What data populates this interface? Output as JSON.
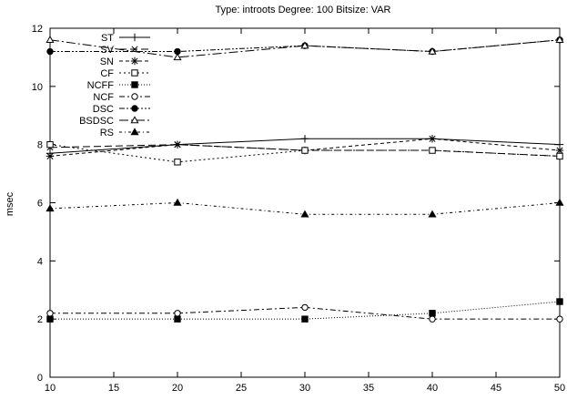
{
  "chart_data": {
    "type": "line",
    "title": "Type: introots Degree: 100 Bitsize: VAR",
    "xlabel": "",
    "ylabel": "msec",
    "xlim": [
      10,
      50
    ],
    "ylim": [
      0,
      12
    ],
    "xticks": [
      10,
      15,
      20,
      25,
      30,
      35,
      40,
      45,
      50
    ],
    "yticks": [
      0,
      2,
      4,
      6,
      8,
      10,
      12
    ],
    "grid": false,
    "legend": "top-left",
    "x": [
      10,
      20,
      30,
      40,
      50
    ],
    "series": [
      {
        "name": "ST",
        "dash": "solid",
        "marker": "plus",
        "values": [
          7.7,
          8.0,
          8.2,
          8.2,
          8.0
        ]
      },
      {
        "name": "SV",
        "dash": "long-dash",
        "marker": "cross",
        "values": [
          7.9,
          8.0,
          7.8,
          7.8,
          7.6
        ]
      },
      {
        "name": "SN",
        "dash": "short-dash",
        "marker": "star",
        "values": [
          7.6,
          8.0,
          7.8,
          8.2,
          7.8
        ]
      },
      {
        "name": "CF",
        "dash": "dotted",
        "marker": "square-open",
        "values": [
          8.0,
          7.4,
          7.8,
          7.8,
          7.6
        ]
      },
      {
        "name": "NCFF",
        "dash": "fine-dotted",
        "marker": "square-filled",
        "values": [
          2.0,
          2.0,
          2.0,
          2.2,
          2.6
        ]
      },
      {
        "name": "NCF",
        "dash": "dash-dot",
        "marker": "circle-open",
        "values": [
          2.2,
          2.2,
          2.4,
          2.0,
          2.0
        ]
      },
      {
        "name": "DSC",
        "dash": "dash-dot-dot",
        "marker": "circle-filled",
        "values": [
          11.2,
          11.2,
          11.4,
          11.2,
          11.6
        ]
      },
      {
        "name": "BSDSC",
        "dash": "dash-dot-long",
        "marker": "triangle-open",
        "values": [
          11.6,
          11.0,
          11.4,
          11.2,
          11.6
        ]
      },
      {
        "name": "RS",
        "dash": "dot-dash",
        "marker": "triangle-filled",
        "values": [
          5.8,
          6.0,
          5.6,
          5.6,
          6.0
        ]
      }
    ]
  }
}
